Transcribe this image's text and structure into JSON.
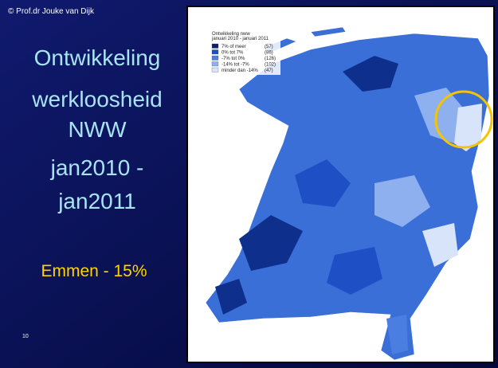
{
  "copyright": "© Prof.dr Jouke van Dijk",
  "title_lines": [
    "Ontwikkeling",
    "werkloosheid",
    "NWW",
    "jan2010 -",
    "jan2011"
  ],
  "highlight": "Emmen - 15%",
  "page_number": "10",
  "map": {
    "legend_title": "Ontwikkeling nww",
    "legend_subtitle": "januari 2010 - januari 2011",
    "legend": [
      {
        "label": "7% of meer",
        "count": "(57)"
      },
      {
        "label": "0% tot 7%",
        "count": "(86)"
      },
      {
        "label": "-7% tot 0%",
        "count": "(126)"
      },
      {
        "label": "-14% tot -7%",
        "count": "(102)"
      },
      {
        "label": "minder dan -14%",
        "count": "(47)"
      }
    ]
  }
}
